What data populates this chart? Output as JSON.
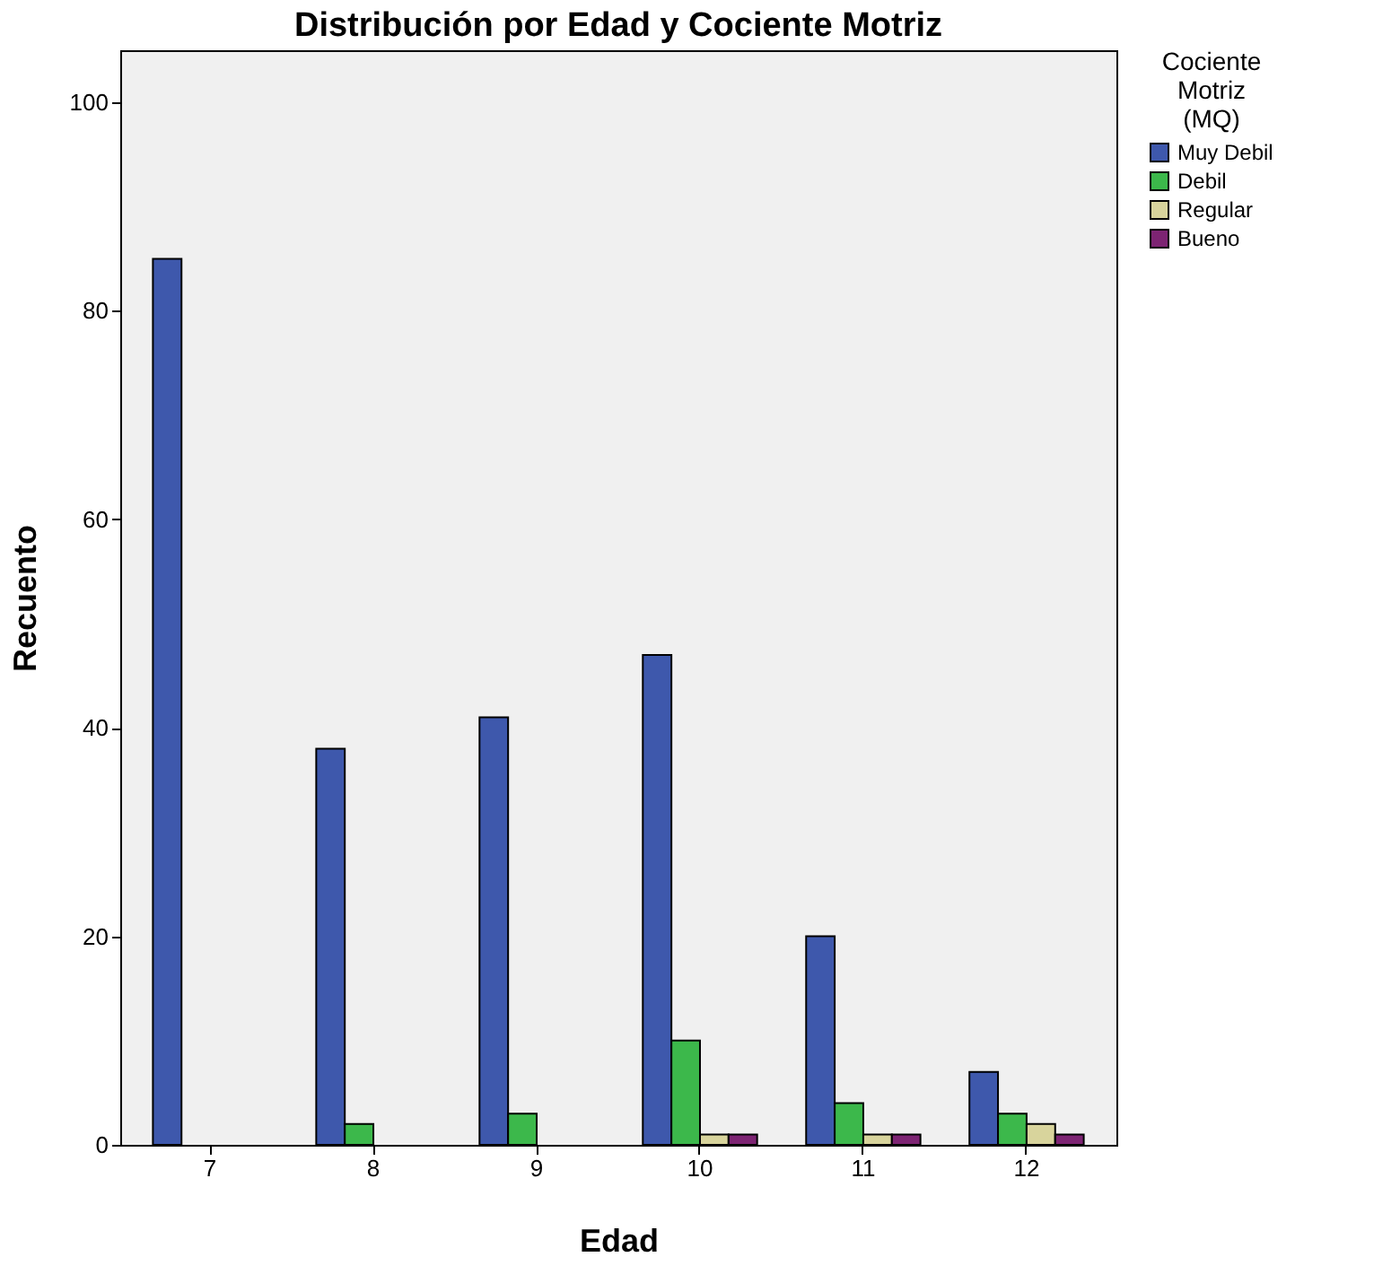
{
  "chart_data": {
    "type": "bar",
    "title": "Distribución por Edad y Cociente Motriz",
    "xlabel": "Edad",
    "ylabel": "Recuento",
    "legend_title": "Cociente Motriz (MQ)",
    "categories": [
      "7",
      "8",
      "9",
      "10",
      "11",
      "12"
    ],
    "series": [
      {
        "name": "Muy Debil",
        "color": "#3e58ac",
        "values": [
          85,
          38,
          41,
          47,
          20,
          7
        ]
      },
      {
        "name": "Debil",
        "color": "#3cb84b",
        "values": [
          null,
          2,
          3,
          10,
          4,
          3
        ]
      },
      {
        "name": "Regular",
        "color": "#d8d49c",
        "values": [
          null,
          null,
          null,
          1,
          1,
          2
        ]
      },
      {
        "name": "Bueno",
        "color": "#7d2473",
        "values": [
          null,
          null,
          null,
          1,
          1,
          1
        ]
      }
    ],
    "ylim": [
      0,
      105
    ],
    "yticks": [
      0,
      20,
      40,
      60,
      80,
      100
    ],
    "grid": false,
    "legend": "top right"
  }
}
